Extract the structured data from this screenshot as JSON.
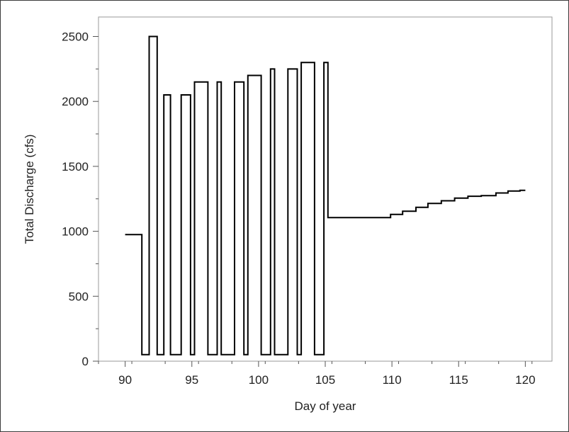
{
  "chart_data": {
    "type": "line",
    "title": "",
    "xlabel": "Day of year",
    "ylabel": "Total Discharge (cfs)",
    "xlim": [
      88,
      122
    ],
    "ylim": [
      0,
      2650
    ],
    "xticks": [
      90,
      95,
      100,
      105,
      110,
      115,
      120
    ],
    "yticks": [
      0,
      500,
      1000,
      1500,
      2000,
      2500
    ],
    "grid": false,
    "line_color": "#000000",
    "series": [
      {
        "x": [
          90.0,
          91.25,
          91.25,
          91.8,
          91.8,
          92.4,
          92.4,
          92.9,
          92.9,
          93.4,
          93.4,
          94.2,
          94.2,
          94.9,
          94.9,
          95.2,
          95.2,
          96.2,
          96.2,
          96.9,
          96.9,
          97.2,
          97.2,
          98.2,
          98.2,
          98.9,
          98.9,
          99.2,
          99.2,
          100.2,
          100.2,
          100.9,
          100.9,
          101.2,
          101.2,
          102.2,
          102.2,
          102.9,
          102.9,
          103.2,
          103.2,
          104.2,
          104.2,
          104.9,
          104.9,
          105.2,
          105.2,
          109.9,
          109.9,
          110.8,
          110.8,
          111.8,
          111.8,
          112.7,
          112.7,
          113.7,
          113.7,
          114.7,
          114.7,
          115.7,
          115.7,
          116.7,
          116.7,
          117.8,
          117.8,
          118.7,
          118.7,
          119.6,
          119.6,
          120.0
        ],
        "y": [
          975,
          975,
          50,
          50,
          2500,
          2500,
          50,
          50,
          2050,
          2050,
          50,
          50,
          2050,
          2050,
          50,
          50,
          2150,
          2150,
          50,
          50,
          2150,
          2150,
          50,
          50,
          2150,
          2150,
          50,
          50,
          2200,
          2200,
          50,
          50,
          2250,
          2250,
          50,
          50,
          2250,
          2250,
          50,
          50,
          2300,
          2300,
          50,
          50,
          2300,
          2300,
          1105,
          1105,
          1130,
          1130,
          1155,
          1155,
          1185,
          1185,
          1215,
          1215,
          1235,
          1235,
          1255,
          1255,
          1270,
          1270,
          1275,
          1275,
          1295,
          1295,
          1310,
          1310,
          1315,
          1315
        ]
      }
    ]
  }
}
